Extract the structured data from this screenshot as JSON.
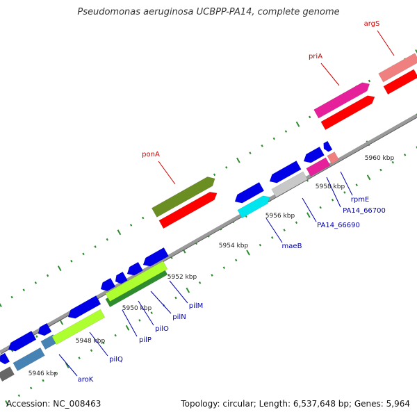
{
  "title": "Pseudomonas aeruginosa UCBPP-PA14, complete genome",
  "footer": {
    "accession": "Accession: NC_008463",
    "summary": "Topology: circular; Length: 6,537,648 bp; Genes: 5,964"
  },
  "colors": {
    "backbone_gray": "#9a9a9a",
    "tick_green": "#2e8b2e",
    "cds_blue": "#0000e6",
    "gene_red": "#ff0000",
    "label_red": "#d00000",
    "label_blue": "#0000aa",
    "olive": "#6b8e23",
    "magenta": "#e6209a",
    "pink": "#f08080",
    "cyan": "#00e5ee",
    "light_gray": "#c8c8c8",
    "lime": "#adff2f",
    "dark_green": "#2e8b2e",
    "steel_blue": "#4682b4",
    "dark_gray": "#666666"
  },
  "scale_labels": [
    "5946 kbp",
    "5948 kbp",
    "5950 kbp",
    "5952 kbp",
    "5954 kbp",
    "5956 kbp",
    "5958 kbp",
    "5960 kbp"
  ],
  "gene_labels": [
    "argS",
    "priA",
    "ponA",
    "rpmE",
    "PA14_66700",
    "PA14_66690",
    "maeB",
    "pilM",
    "pilN",
    "pilO",
    "pilP",
    "pilQ",
    "aroK"
  ]
}
